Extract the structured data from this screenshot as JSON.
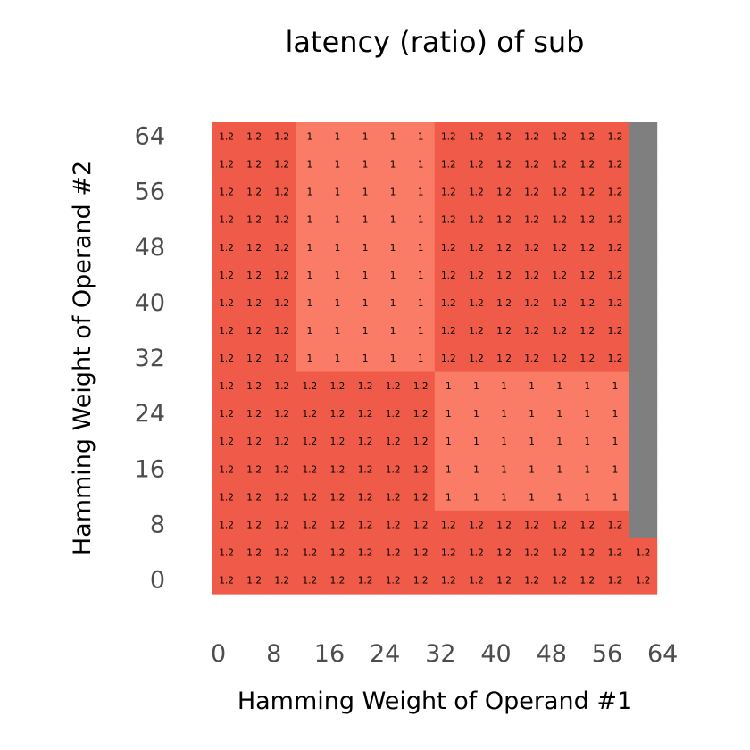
{
  "chart_data": {
    "type": "heatmap",
    "title": "latency (ratio) of sub",
    "xlabel": "Hamming Weight of Operand #1",
    "ylabel": "Hamming Weight of Operand #2",
    "x_ticks": [
      "0",
      "8",
      "16",
      "24",
      "32",
      "40",
      "48",
      "56",
      "64"
    ],
    "y_ticks": [
      "0",
      "8",
      "16",
      "24",
      "32",
      "40",
      "48",
      "56",
      "64"
    ],
    "columns": 16,
    "rows": 17,
    "missing_color": "#7f7f7f",
    "color_high": "#f05a48",
    "color_low": "#fa7b66",
    "grid": false,
    "cells_rows_top_to_bottom": [
      [
        "1.2",
        "1.2",
        "1.2",
        "1",
        "1",
        "1",
        "1",
        "1",
        "1.2",
        "1.2",
        "1.2",
        "1.2",
        "1.2",
        "1.2",
        "1.2",
        null
      ],
      [
        "1.2",
        "1.2",
        "1.2",
        "1",
        "1",
        "1",
        "1",
        "1",
        "1.2",
        "1.2",
        "1.2",
        "1.2",
        "1.2",
        "1.2",
        "1.2",
        null
      ],
      [
        "1.2",
        "1.2",
        "1.2",
        "1",
        "1",
        "1",
        "1",
        "1",
        "1.2",
        "1.2",
        "1.2",
        "1.2",
        "1.2",
        "1.2",
        "1.2",
        null
      ],
      [
        "1.2",
        "1.2",
        "1.2",
        "1",
        "1",
        "1",
        "1",
        "1",
        "1.2",
        "1.2",
        "1.2",
        "1.2",
        "1.2",
        "1.2",
        "1.2",
        null
      ],
      [
        "1.2",
        "1.2",
        "1.2",
        "1",
        "1",
        "1",
        "1",
        "1",
        "1.2",
        "1.2",
        "1.2",
        "1.2",
        "1.2",
        "1.2",
        "1.2",
        null
      ],
      [
        "1.2",
        "1.2",
        "1.2",
        "1",
        "1",
        "1",
        "1",
        "1",
        "1.2",
        "1.2",
        "1.2",
        "1.2",
        "1.2",
        "1.2",
        "1.2",
        null
      ],
      [
        "1.2",
        "1.2",
        "1.2",
        "1",
        "1",
        "1",
        "1",
        "1",
        "1.2",
        "1.2",
        "1.2",
        "1.2",
        "1.2",
        "1.2",
        "1.2",
        null
      ],
      [
        "1.2",
        "1.2",
        "1.2",
        "1",
        "1",
        "1",
        "1",
        "1",
        "1.2",
        "1.2",
        "1.2",
        "1.2",
        "1.2",
        "1.2",
        "1.2",
        null
      ],
      [
        "1.2",
        "1.2",
        "1.2",
        "1",
        "1",
        "1",
        "1",
        "1",
        "1.2",
        "1.2",
        "1.2",
        "1.2",
        "1.2",
        "1.2",
        "1.2",
        null
      ],
      [
        "1.2",
        "1.2",
        "1.2",
        "1.2",
        "1.2",
        "1.2",
        "1.2",
        "1.2",
        "1",
        "1",
        "1",
        "1",
        "1",
        "1",
        "1",
        null
      ],
      [
        "1.2",
        "1.2",
        "1.2",
        "1.2",
        "1.2",
        "1.2",
        "1.2",
        "1.2",
        "1",
        "1",
        "1",
        "1",
        "1",
        "1",
        "1",
        null
      ],
      [
        "1.2",
        "1.2",
        "1.2",
        "1.2",
        "1.2",
        "1.2",
        "1.2",
        "1.2",
        "1",
        "1",
        "1",
        "1",
        "1",
        "1",
        "1",
        null
      ],
      [
        "1.2",
        "1.2",
        "1.2",
        "1.2",
        "1.2",
        "1.2",
        "1.2",
        "1.2",
        "1",
        "1",
        "1",
        "1",
        "1",
        "1",
        "1",
        null
      ],
      [
        "1.2",
        "1.2",
        "1.2",
        "1.2",
        "1.2",
        "1.2",
        "1.2",
        "1.2",
        "1",
        "1",
        "1",
        "1",
        "1",
        "1",
        "1",
        null
      ],
      [
        "1.2",
        "1.2",
        "1.2",
        "1.2",
        "1.2",
        "1.2",
        "1.2",
        "1.2",
        "1.2",
        "1.2",
        "1.2",
        "1.2",
        "1.2",
        "1.2",
        "1.2",
        null
      ],
      [
        "1.2",
        "1.2",
        "1.2",
        "1.2",
        "1.2",
        "1.2",
        "1.2",
        "1.2",
        "1.2",
        "1.2",
        "1.2",
        "1.2",
        "1.2",
        "1.2",
        "1.2",
        "1.2"
      ],
      [
        "1.2",
        "1.2",
        "1.2",
        "1.2",
        "1.2",
        "1.2",
        "1.2",
        "1.2",
        "1.2",
        "1.2",
        "1.2",
        "1.2",
        "1.2",
        "1.2",
        "1.2",
        "1.2"
      ]
    ]
  }
}
